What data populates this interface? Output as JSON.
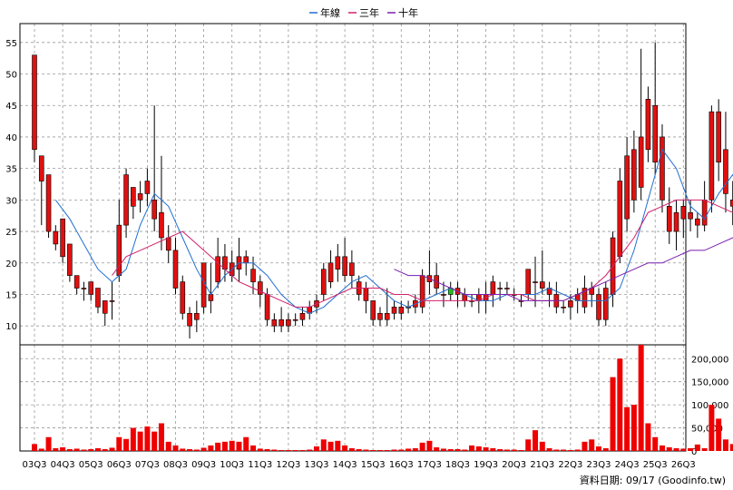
{
  "chart_data": {
    "type": "candlestick",
    "legend": {
      "placement": "top-center",
      "items": [
        {
          "name": "年線",
          "color": "#1f6fd1"
        },
        {
          "name": "三年",
          "color": "#d0206a"
        },
        {
          "name": "十年",
          "color": "#7a1fb0"
        }
      ]
    },
    "colors": {
      "up": "#e01010",
      "down": "#20c020",
      "wick": "#000000",
      "volume": "#ee0000",
      "grid": "#999999"
    },
    "grid": true,
    "price_axis": {
      "range": [
        7,
        58
      ],
      "ticks": [
        10,
        15,
        20,
        25,
        30,
        35,
        40,
        45,
        50,
        55
      ],
      "position": "left"
    },
    "volume_axis": {
      "range": [
        0,
        230000
      ],
      "ticks": [
        "0",
        "50,000",
        "100,000",
        "150,000",
        "200,000"
      ],
      "tick_values": [
        0,
        50000,
        100000,
        150000,
        200000
      ],
      "position": "right"
    },
    "x_tick_labels": [
      "03Q3",
      "04Q3",
      "05Q3",
      "06Q3",
      "07Q3",
      "08Q3",
      "09Q3",
      "10Q3",
      "11Q3",
      "12Q3",
      "13Q3",
      "14Q3",
      "15Q3",
      "16Q3",
      "17Q3",
      "18Q3",
      "19Q3",
      "20Q3",
      "21Q3",
      "22Q3",
      "23Q3",
      "24Q3",
      "25Q3",
      "26Q3"
    ],
    "footer": "資料日期: 09/17  (Goodinfo.tw)",
    "candles": [
      [
        0,
        38,
        53,
        36,
        53,
        15000
      ],
      [
        0.25,
        33,
        37,
        26,
        37,
        5000
      ],
      [
        0.5,
        25,
        34,
        24,
        34,
        30000
      ],
      [
        0.75,
        23,
        26,
        22,
        25,
        6000
      ],
      [
        1,
        21,
        27,
        20,
        27,
        8000
      ],
      [
        1.25,
        18,
        23,
        17,
        23,
        4000
      ],
      [
        1.5,
        16,
        18,
        15,
        18,
        5000
      ],
      [
        1.75,
        16,
        17,
        14,
        16,
        3000
      ],
      [
        2,
        15,
        17,
        14,
        17,
        4000
      ],
      [
        2.25,
        13,
        16,
        12,
        16,
        6000
      ],
      [
        2.5,
        12,
        14,
        10,
        14,
        4000
      ],
      [
        2.75,
        14,
        17,
        11,
        14,
        7000
      ],
      [
        3,
        18,
        30,
        17,
        26,
        30000
      ],
      [
        3.25,
        26,
        35,
        24,
        34,
        26000
      ],
      [
        3.5,
        29,
        32,
        27,
        32,
        50000
      ],
      [
        3.75,
        30,
        33,
        28,
        31,
        42000
      ],
      [
        4,
        31,
        35,
        29,
        33,
        53000
      ],
      [
        4.25,
        27,
        45,
        25,
        30,
        42000
      ],
      [
        4.5,
        24,
        37,
        22,
        28,
        60000
      ],
      [
        4.75,
        22,
        26,
        20,
        24,
        20000
      ],
      [
        5,
        16,
        24,
        15,
        22,
        12000
      ],
      [
        5.25,
        12,
        18,
        11,
        17,
        5000
      ],
      [
        5.5,
        10,
        13,
        8,
        12,
        4000
      ],
      [
        5.75,
        11,
        14,
        9,
        12,
        3000
      ],
      [
        6,
        13,
        20,
        12,
        20,
        7000
      ],
      [
        6.25,
        14,
        20,
        12,
        15,
        12000
      ],
      [
        6.5,
        17,
        24,
        16,
        21,
        18000
      ],
      [
        6.75,
        19,
        23,
        17,
        21,
        20000
      ],
      [
        7,
        18,
        22,
        17,
        20,
        22000
      ],
      [
        7.25,
        19,
        24,
        17,
        21,
        20000
      ],
      [
        7.5,
        20,
        22,
        18,
        21,
        30000
      ],
      [
        7.75,
        17,
        21,
        15,
        19,
        12000
      ],
      [
        8,
        15,
        18,
        13,
        17,
        5000
      ],
      [
        8.25,
        11,
        16,
        10,
        15,
        4000
      ],
      [
        8.5,
        10,
        12,
        9,
        11,
        3000
      ],
      [
        8.75,
        10,
        13,
        9,
        11,
        2000
      ],
      [
        9,
        10,
        12,
        9,
        11,
        2000
      ],
      [
        9.25,
        11,
        12,
        10,
        11,
        2000
      ],
      [
        9.5,
        11,
        13,
        10,
        12,
        2000
      ],
      [
        9.75,
        12,
        14,
        11,
        13,
        3000
      ],
      [
        10,
        13,
        15,
        12,
        14,
        10000
      ],
      [
        10.25,
        15,
        20,
        14,
        19,
        25000
      ],
      [
        10.5,
        17,
        22,
        16,
        20,
        20000
      ],
      [
        10.75,
        19,
        23,
        17,
        21,
        22000
      ],
      [
        11,
        18,
        24,
        17,
        21,
        12000
      ],
      [
        11.25,
        18,
        22,
        16,
        20,
        6000
      ],
      [
        11.5,
        15,
        18,
        14,
        17,
        4000
      ],
      [
        11.75,
        14,
        17,
        12,
        16,
        3000
      ],
      [
        12,
        11,
        14,
        10,
        14,
        2000
      ],
      [
        12.25,
        11,
        13,
        10,
        12,
        2000
      ],
      [
        12.5,
        11,
        16,
        10,
        12,
        2000
      ],
      [
        12.75,
        12,
        14,
        11,
        13,
        3000
      ],
      [
        13,
        12,
        14,
        11,
        13,
        3000
      ],
      [
        13.25,
        13,
        14,
        12,
        13,
        5000
      ],
      [
        13.5,
        13,
        15,
        12,
        14,
        6000
      ],
      [
        13.75,
        13,
        19,
        12,
        18,
        18000
      ],
      [
        14,
        17,
        22,
        15,
        18,
        22000
      ],
      [
        14.25,
        16,
        20,
        15,
        18,
        8000
      ],
      [
        14.5,
        15,
        17,
        13,
        15,
        5000
      ],
      [
        14.75,
        16,
        17,
        14,
        15,
        4000
      ],
      [
        15,
        15,
        17,
        13,
        16,
        4000
      ],
      [
        15.25,
        14,
        16,
        13,
        15,
        3000
      ],
      [
        15.5,
        14,
        15,
        13,
        14,
        12000
      ],
      [
        15.75,
        14,
        16,
        12,
        15,
        10000
      ],
      [
        16,
        14,
        17,
        12,
        15,
        8000
      ],
      [
        16.25,
        15,
        18,
        13,
        17,
        6000
      ],
      [
        16.5,
        16,
        17,
        14,
        16,
        4000
      ],
      [
        16.75,
        16,
        17,
        15,
        16,
        3000
      ],
      [
        17,
        15,
        16,
        14,
        15,
        3000
      ],
      [
        17.25,
        14,
        15,
        13,
        14,
        2000
      ],
      [
        17.5,
        15,
        19,
        14,
        19,
        25000
      ],
      [
        17.75,
        17,
        21,
        13,
        17,
        45000
      ],
      [
        18,
        16,
        22,
        15,
        17,
        20000
      ],
      [
        18.25,
        15,
        17,
        13,
        16,
        6000
      ],
      [
        18.5,
        13,
        17,
        12,
        15,
        3000
      ],
      [
        18.75,
        13,
        14,
        12,
        13,
        3000
      ],
      [
        19,
        13,
        15,
        11,
        14,
        2000
      ],
      [
        19.25,
        14,
        16,
        12,
        15,
        3000
      ],
      [
        19.5,
        13,
        18,
        12,
        16,
        20000
      ],
      [
        19.75,
        15,
        17,
        13,
        16,
        25000
      ],
      [
        20,
        11,
        16,
        10,
        15,
        10000
      ],
      [
        20.25,
        11,
        17,
        10,
        16,
        6000
      ],
      [
        20.5,
        15,
        25,
        13,
        24,
        160000
      ],
      [
        20.75,
        21,
        35,
        20,
        33,
        200000
      ],
      [
        21,
        27,
        40,
        25,
        37,
        95000
      ],
      [
        21.25,
        30,
        41,
        28,
        38,
        100000
      ],
      [
        21.5,
        32,
        54,
        30,
        40,
        230000
      ],
      [
        21.75,
        38,
        48,
        36,
        46,
        60000
      ],
      [
        22,
        36,
        55,
        34,
        45,
        30000
      ],
      [
        22.25,
        30,
        42,
        28,
        40,
        12000
      ],
      [
        22.5,
        25,
        32,
        23,
        29,
        8000
      ],
      [
        22.75,
        25,
        30,
        22,
        28,
        6000
      ],
      [
        23,
        27,
        30,
        24,
        29,
        5000
      ],
      [
        23.25,
        27,
        30,
        25,
        28,
        6000
      ],
      [
        23.5,
        26,
        28,
        24,
        27,
        14000
      ],
      [
        23.75,
        26,
        33,
        25,
        30,
        6000
      ],
      [
        24,
        30,
        45,
        28,
        44,
        100000
      ],
      [
        24.25,
        36,
        46,
        33,
        44,
        70000
      ],
      [
        24.5,
        31,
        44,
        28,
        38,
        25000
      ],
      [
        24.75,
        29,
        33,
        26,
        30,
        15000
      ],
      [
        25,
        25,
        30,
        23,
        29,
        5000
      ],
      [
        25.25,
        22,
        26,
        21,
        25,
        6000
      ],
      [
        25.5,
        21,
        24,
        20,
        23,
        5000
      ],
      [
        25.75,
        22,
        30,
        20,
        26,
        30000
      ],
      [
        26,
        23,
        28,
        21,
        26,
        20000
      ]
    ],
    "series": [
      {
        "name": "年線",
        "color": "#1f6fd1",
        "points": [
          [
            0.75,
            30
          ],
          [
            1.25,
            27
          ],
          [
            1.75,
            23
          ],
          [
            2.25,
            19
          ],
          [
            2.75,
            17
          ],
          [
            3.25,
            19
          ],
          [
            3.75,
            26
          ],
          [
            4.25,
            31
          ],
          [
            4.75,
            29
          ],
          [
            5.25,
            24
          ],
          [
            5.75,
            19
          ],
          [
            6.25,
            15
          ],
          [
            6.75,
            18
          ],
          [
            7.25,
            20
          ],
          [
            7.75,
            20
          ],
          [
            8.25,
            18
          ],
          [
            8.75,
            15
          ],
          [
            9.25,
            13
          ],
          [
            9.75,
            12
          ],
          [
            10.25,
            13
          ],
          [
            10.75,
            15
          ],
          [
            11.25,
            17
          ],
          [
            11.75,
            18
          ],
          [
            12.25,
            16
          ],
          [
            12.75,
            14
          ],
          [
            13.25,
            13
          ],
          [
            13.75,
            14
          ],
          [
            14.25,
            15
          ],
          [
            14.75,
            16
          ],
          [
            15.25,
            15
          ],
          [
            15.75,
            14
          ],
          [
            16.25,
            14
          ],
          [
            16.75,
            15
          ],
          [
            17.25,
            15
          ],
          [
            17.75,
            15
          ],
          [
            18.25,
            16
          ],
          [
            18.75,
            15
          ],
          [
            19.25,
            14
          ],
          [
            19.75,
            14
          ],
          [
            20.25,
            14
          ],
          [
            20.75,
            16
          ],
          [
            21.25,
            22
          ],
          [
            21.75,
            30
          ],
          [
            22.25,
            38
          ],
          [
            22.75,
            35
          ],
          [
            23.25,
            29
          ],
          [
            23.75,
            27
          ],
          [
            24.25,
            31
          ],
          [
            24.75,
            34
          ],
          [
            25.25,
            30
          ],
          [
            25.75,
            26
          ],
          [
            26,
            25
          ]
        ]
      },
      {
        "name": "三年",
        "color": "#d0206a",
        "points": [
          [
            2.75,
            18
          ],
          [
            3.25,
            21
          ],
          [
            3.75,
            22
          ],
          [
            4.25,
            23
          ],
          [
            4.75,
            24
          ],
          [
            5.25,
            25
          ],
          [
            5.75,
            23
          ],
          [
            6.25,
            21
          ],
          [
            6.75,
            19
          ],
          [
            7.25,
            17
          ],
          [
            7.75,
            16
          ],
          [
            8.25,
            15
          ],
          [
            8.75,
            14
          ],
          [
            9.25,
            13
          ],
          [
            9.75,
            13
          ],
          [
            10.25,
            14
          ],
          [
            10.75,
            15
          ],
          [
            11.25,
            16
          ],
          [
            11.75,
            16
          ],
          [
            12.25,
            16
          ],
          [
            12.75,
            15
          ],
          [
            13.25,
            15
          ],
          [
            13.75,
            14
          ],
          [
            14.25,
            14
          ],
          [
            14.75,
            14
          ],
          [
            15.25,
            14
          ],
          [
            15.75,
            14
          ],
          [
            16.25,
            15
          ],
          [
            16.75,
            15
          ],
          [
            17.25,
            15
          ],
          [
            17.75,
            14
          ],
          [
            18.25,
            14
          ],
          [
            18.75,
            14
          ],
          [
            19.25,
            15
          ],
          [
            19.75,
            16
          ],
          [
            20.25,
            18
          ],
          [
            20.75,
            21
          ],
          [
            21.25,
            24
          ],
          [
            21.75,
            28
          ],
          [
            22.25,
            29
          ],
          [
            22.75,
            30
          ],
          [
            23.25,
            30
          ],
          [
            23.75,
            30
          ],
          [
            24.25,
            29
          ],
          [
            24.75,
            28
          ],
          [
            25.25,
            27
          ],
          [
            25.75,
            28
          ],
          [
            26,
            28
          ]
        ]
      },
      {
        "name": "十年",
        "color": "#7a1fb0",
        "points": [
          [
            12.75,
            19
          ],
          [
            13.25,
            18
          ],
          [
            13.75,
            18
          ],
          [
            14.25,
            17
          ],
          [
            14.75,
            16
          ],
          [
            15.25,
            15
          ],
          [
            15.75,
            15
          ],
          [
            16.25,
            15
          ],
          [
            16.75,
            15
          ],
          [
            17.25,
            14
          ],
          [
            17.75,
            14
          ],
          [
            18.25,
            14
          ],
          [
            18.75,
            14
          ],
          [
            19.25,
            15
          ],
          [
            19.75,
            16
          ],
          [
            20.25,
            17
          ],
          [
            20.75,
            18
          ],
          [
            21.25,
            19
          ],
          [
            21.75,
            20
          ],
          [
            22.25,
            20
          ],
          [
            22.75,
            21
          ],
          [
            23.25,
            22
          ],
          [
            23.75,
            22
          ],
          [
            24.25,
            23
          ],
          [
            24.75,
            24
          ],
          [
            25.25,
            24
          ],
          [
            25.75,
            24
          ],
          [
            26,
            24
          ]
        ]
      }
    ]
  }
}
